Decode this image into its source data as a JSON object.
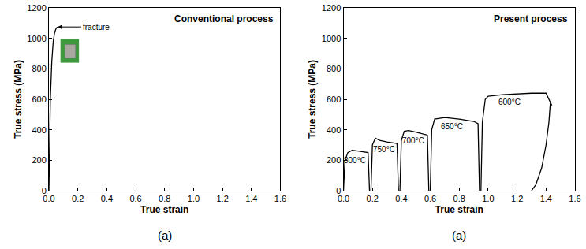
{
  "chart_data": [
    {
      "type": "line",
      "title": "Conventional process",
      "caption": "(a)",
      "x_label": "True strain",
      "y_label": "True stress (MPa)",
      "xlim": [
        0,
        1.6
      ],
      "ylim": [
        0,
        1200
      ],
      "xticks": [
        {
          "value": 0,
          "label": "0.0"
        },
        0.2,
        0.4,
        0.6,
        0.8,
        {
          "value": 1,
          "label": "1.0"
        },
        1.2,
        1.4,
        1.6
      ],
      "yticks": [
        0,
        200,
        400,
        600,
        800,
        1000,
        1200
      ],
      "grid": false,
      "series": [
        {
          "color": "#000000",
          "x": [
            0,
            0.005,
            0.01,
            0.02,
            0.03,
            0.04,
            0.05,
            0.06
          ],
          "values": [
            0,
            300,
            600,
            850,
            980,
            1040,
            1065,
            1075
          ]
        }
      ],
      "annotations": [
        {
          "text": "fracture",
          "x": 0.06,
          "y": 1075,
          "arrow": true
        }
      ]
    },
    {
      "type": "line",
      "title": "Present process",
      "caption": "(a)",
      "x_label": "True strain",
      "y_label": "True stress (MPa)",
      "xlim": [
        0,
        1.6
      ],
      "ylim": [
        0,
        1200
      ],
      "xticks": [
        {
          "value": 0,
          "label": "0.0"
        },
        0.2,
        0.4,
        0.6,
        0.8,
        {
          "value": 1,
          "label": "1.0"
        },
        1.2,
        1.4,
        1.6
      ],
      "yticks": [
        0,
        200,
        400,
        600,
        800,
        1000,
        1200
      ],
      "grid": false,
      "series": [
        {
          "color": "#000000",
          "x": [
            0,
            0.01,
            0.03,
            0.06,
            0.1,
            0.14,
            0.17,
            0.18
          ],
          "values": [
            0,
            200,
            250,
            265,
            260,
            255,
            250,
            0
          ]
        },
        {
          "color": "#000000",
          "x": [
            0.19,
            0.2,
            0.22,
            0.25,
            0.3,
            0.35,
            0.37,
            0.38
          ],
          "values": [
            0,
            300,
            345,
            330,
            320,
            315,
            310,
            0
          ]
        },
        {
          "color": "#000000",
          "x": [
            0.39,
            0.4,
            0.42,
            0.45,
            0.5,
            0.55,
            0.58,
            0.59
          ],
          "values": [
            0,
            330,
            390,
            395,
            385,
            370,
            365,
            0
          ]
        },
        {
          "color": "#000000",
          "x": [
            0.6,
            0.61,
            0.63,
            0.7,
            0.8,
            0.9,
            0.93,
            0.94
          ],
          "values": [
            0,
            400,
            470,
            480,
            470,
            455,
            440,
            0
          ]
        },
        {
          "color": "#000000",
          "x": [
            0.95,
            0.96,
            0.98,
            1.0,
            1.1,
            1.2,
            1.3,
            1.4,
            1.42,
            1.44
          ],
          "values": [
            0,
            450,
            600,
            620,
            630,
            635,
            640,
            640,
            600,
            560
          ]
        },
        {
          "color": "#000000",
          "x": [
            1.43,
            1.42,
            1.4,
            1.37,
            1.33,
            1.3
          ],
          "values": [
            580,
            450,
            300,
            150,
            40,
            0
          ]
        }
      ],
      "annotations": [
        {
          "text": "800°C",
          "x": 0.08,
          "y": 200
        },
        {
          "text": "750°C",
          "x": 0.28,
          "y": 270
        },
        {
          "text": "700°C",
          "x": 0.48,
          "y": 330
        },
        {
          "text": "650°C",
          "x": 0.75,
          "y": 420
        },
        {
          "text": "600°C",
          "x": 1.15,
          "y": 580
        }
      ]
    }
  ]
}
